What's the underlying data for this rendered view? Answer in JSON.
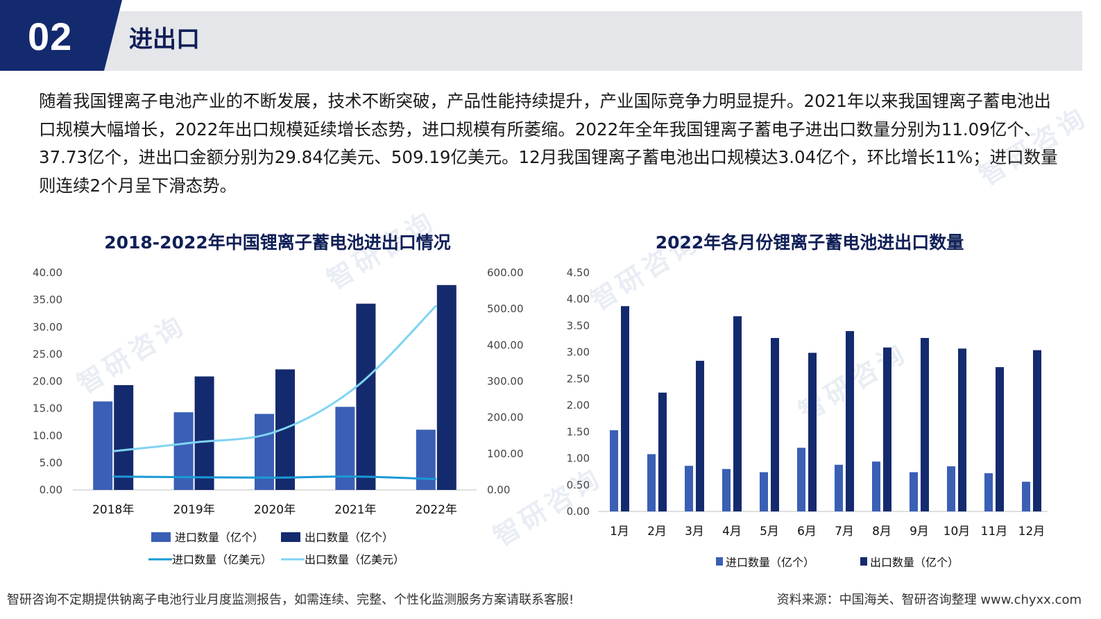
{
  "header": {
    "section_number": "02",
    "section_title": "进出口",
    "colors": {
      "navy": "#142a6e",
      "bar_gray": "#e4e6ea"
    }
  },
  "intro": "随着我国锂离子电池产业的不断发展，技术不断突破，产品性能持续提升，产业国际竞争力明显提升。2021年以来我国锂离子蓄电池出口规模大幅增长，2022年出口规模延续增长态势，进口规模有所萎缩。2022年全年我国锂离子蓄电子进出口数量分别为11.09亿个、37.73亿个，进出口金额分别为29.84亿美元、509.19亿美元。12月我国锂离子蓄电池出口规模达3.04亿个，环比增长11%；进口数量则连续2个月呈下滑态势。",
  "watermark_text": "智研咨询",
  "chart_data": [
    {
      "type": "bar",
      "title": "2018-2022年中国锂离子蓄电池进出口情况",
      "categories": [
        "2018年",
        "2019年",
        "2020年",
        "2021年",
        "2022年"
      ],
      "y_left": {
        "ylim": [
          0,
          40
        ],
        "ticks": [
          "0.00",
          "5.00",
          "10.00",
          "15.00",
          "20.00",
          "25.00",
          "30.00",
          "35.00",
          "40.00"
        ]
      },
      "y_right": {
        "ylim": [
          0,
          600
        ],
        "ticks": [
          "0.00",
          "100.00",
          "200.00",
          "300.00",
          "400.00",
          "500.00",
          "600.00"
        ]
      },
      "bar_series": [
        {
          "name": "进口数量（亿个）",
          "color": "#3a5fb4",
          "values": [
            16.3,
            14.3,
            14.0,
            15.3,
            11.09
          ]
        },
        {
          "name": "出口数量（亿个）",
          "color": "#142a6e",
          "values": [
            19.3,
            20.9,
            22.2,
            34.3,
            37.73
          ]
        }
      ],
      "line_series": [
        {
          "name": "进口数量（亿美元）",
          "color": "#1a9ad6",
          "values": [
            37.0,
            35.0,
            34.0,
            37.0,
            29.84
          ]
        },
        {
          "name": "出口数量（亿美元）",
          "color": "#7fd3f3",
          "values": [
            107.0,
            131.0,
            160.0,
            283.0,
            509.19
          ]
        }
      ],
      "grid": false,
      "legend": "bottom"
    },
    {
      "type": "bar",
      "title": "2022年各月份锂离子蓄电池进出口数量",
      "categories": [
        "1月",
        "2月",
        "3月",
        "4月",
        "5月",
        "6月",
        "7月",
        "8月",
        "9月",
        "10月",
        "11月",
        "12月"
      ],
      "ylim": [
        0,
        4.5
      ],
      "ticks": [
        "0.00",
        "0.50",
        "1.00",
        "1.50",
        "2.00",
        "2.50",
        "3.00",
        "3.50",
        "4.00",
        "4.50"
      ],
      "series": [
        {
          "name": "进口数量（亿个）",
          "color": "#3a5fb4",
          "values": [
            1.53,
            1.08,
            0.86,
            0.8,
            0.74,
            1.2,
            0.88,
            0.94,
            0.74,
            0.85,
            0.72,
            0.56
          ]
        },
        {
          "name": "出口数量（亿个）",
          "color": "#142a6e",
          "values": [
            3.87,
            2.24,
            2.84,
            3.68,
            3.27,
            2.99,
            3.4,
            3.09,
            3.27,
            3.07,
            2.72,
            3.04
          ]
        }
      ],
      "grid": false,
      "legend": "bottom"
    }
  ],
  "footer": {
    "left": "智研咨询不定期提供钠离子电池行业月度监测报告，如需连续、完整、个性化监测服务方案请联系客服!",
    "right": "资料来源：中国海关、智研咨询整理   www.chyxx.com"
  }
}
